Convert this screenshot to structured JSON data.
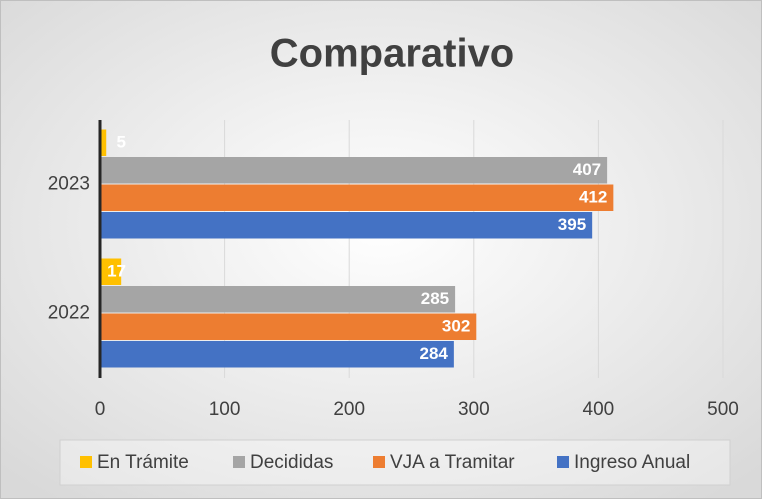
{
  "chart_data": {
    "type": "bar",
    "orientation": "horizontal",
    "title": "Comparativo",
    "categories": [
      "2022",
      "2023"
    ],
    "series": [
      {
        "name": "En Trámite",
        "color": "#ffc000",
        "values": [
          17,
          5
        ]
      },
      {
        "name": "Decididas",
        "color": "#a5a5a5",
        "values": [
          285,
          407
        ]
      },
      {
        "name": "VJA a Tramitar",
        "color": "#ed7d31",
        "values": [
          302,
          412
        ]
      },
      {
        "name": "Ingreso Anual",
        "color": "#4472c4",
        "values": [
          284,
          395
        ]
      }
    ],
    "xlim": [
      0,
      500
    ],
    "xticks": [
      0,
      100,
      200,
      300,
      400,
      500
    ],
    "grid": true,
    "legend": "bottom"
  }
}
